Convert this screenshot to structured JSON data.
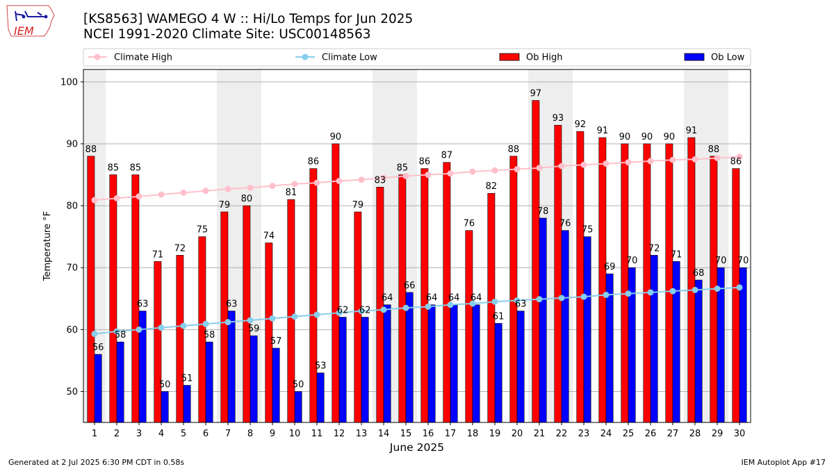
{
  "header": {
    "title_line1": "[KS8563] WAMEGO 4 W :: Hi/Lo Temps for Jun 2025",
    "title_line2": "NCEI 1991-2020 Climate Site: USC00148563",
    "logo_text": "IEM"
  },
  "footer": {
    "left": "Generated at 2 Jul 2025 6:30 PM CDT in 0.58s",
    "right": "IEM Autoplot App #17"
  },
  "colors": {
    "ob_high": "#ff0000",
    "ob_low": "#0000ff",
    "climate_high": "#ffc0cb",
    "climate_low": "#87ceeb",
    "weekend_shade": "#eeeeee"
  },
  "chart_data": {
    "type": "bar",
    "xlabel": "June 2025",
    "ylabel": "Temperature °F",
    "ylim": [
      45,
      102
    ],
    "yticks": [
      50,
      60,
      70,
      80,
      90,
      100
    ],
    "grid": true,
    "legend_position": "top",
    "weekend_days": [
      1,
      7,
      8,
      14,
      15,
      21,
      22,
      28,
      29
    ],
    "categories": [
      "1",
      "2",
      "3",
      "4",
      "5",
      "6",
      "7",
      "8",
      "9",
      "10",
      "11",
      "12",
      "13",
      "14",
      "15",
      "16",
      "17",
      "18",
      "19",
      "20",
      "21",
      "22",
      "23",
      "24",
      "25",
      "26",
      "27",
      "28",
      "29",
      "30"
    ],
    "series": [
      {
        "name": "Ob High",
        "kind": "bar",
        "color": "#ff0000",
        "values": [
          88,
          85,
          85,
          71,
          72,
          75,
          79,
          80,
          74,
          81,
          86,
          90,
          79,
          83,
          85,
          86,
          87,
          76,
          82,
          88,
          97,
          93,
          92,
          91,
          90,
          90,
          90,
          91,
          88,
          86
        ]
      },
      {
        "name": "Ob Low",
        "kind": "bar",
        "color": "#0000ff",
        "values": [
          56,
          58,
          63,
          50,
          51,
          58,
          63,
          59,
          57,
          50,
          53,
          62,
          62,
          64,
          66,
          64,
          64,
          64,
          61,
          63,
          78,
          76,
          75,
          69,
          70,
          72,
          71,
          68,
          70,
          70
        ]
      },
      {
        "name": "Climate High",
        "kind": "line",
        "color": "#ffc0cb",
        "values": [
          80.9,
          81.2,
          81.5,
          81.8,
          82.1,
          82.4,
          82.7,
          82.9,
          83.2,
          83.5,
          83.7,
          84.0,
          84.2,
          84.5,
          84.8,
          85.0,
          85.2,
          85.5,
          85.7,
          85.9,
          86.1,
          86.4,
          86.6,
          86.8,
          87.0,
          87.2,
          87.4,
          87.5,
          87.7,
          87.9
        ]
      },
      {
        "name": "Climate Low",
        "kind": "line",
        "color": "#87ceeb",
        "values": [
          59.3,
          59.7,
          60.0,
          60.3,
          60.6,
          60.9,
          61.2,
          61.5,
          61.8,
          62.1,
          62.4,
          62.7,
          63.0,
          63.2,
          63.5,
          63.7,
          64.0,
          64.2,
          64.5,
          64.7,
          64.9,
          65.1,
          65.3,
          65.6,
          65.8,
          66.0,
          66.2,
          66.4,
          66.6,
          66.8
        ]
      }
    ]
  }
}
